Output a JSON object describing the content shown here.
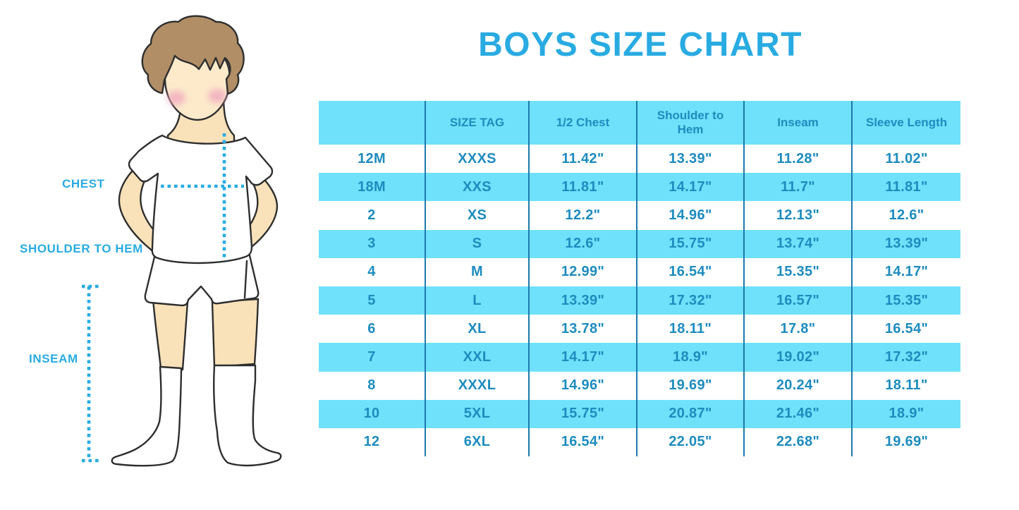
{
  "title": "BOYS SIZE CHART",
  "illustration": {
    "description": "cartoon boy in white t-shirt, shorts and knee socks with dotted measurement guides",
    "labels": {
      "chest": "CHEST",
      "shoulder_to_hem": "SHOULDER TO HEM",
      "inseam": "INSEAM"
    }
  },
  "chart_data": {
    "type": "table",
    "title": "BOYS SIZE CHART",
    "columns": [
      "",
      "SIZE TAG",
      "1/2 Chest",
      "Shoulder to Hem",
      "Inseam",
      "Sleeve Length"
    ],
    "rows": [
      [
        "12M",
        "XXXS",
        "11.42\"",
        "13.39\"",
        "11.28\"",
        "11.02\""
      ],
      [
        "18M",
        "XXS",
        "11.81\"",
        "14.17\"",
        "11.7\"",
        "11.81\""
      ],
      [
        "2",
        "XS",
        "12.2\"",
        "14.96\"",
        "12.13\"",
        "12.6\""
      ],
      [
        "3",
        "S",
        "12.6\"",
        "15.75\"",
        "13.74\"",
        "13.39\""
      ],
      [
        "4",
        "M",
        "12.99\"",
        "16.54\"",
        "15.35\"",
        "14.17\""
      ],
      [
        "5",
        "L",
        "13.39\"",
        "17.32\"",
        "16.57\"",
        "15.35\""
      ],
      [
        "6",
        "XL",
        "13.78\"",
        "18.11\"",
        "17.8\"",
        "16.54\""
      ],
      [
        "7",
        "XXL",
        "14.17\"",
        "18.9\"",
        "19.02\"",
        "17.32\""
      ],
      [
        "8",
        "XXXL",
        "14.96\"",
        "19.69\"",
        "20.24\"",
        "18.11\""
      ],
      [
        "10",
        "5XL",
        "15.75\"",
        "20.87\"",
        "21.46\"",
        "18.9\""
      ],
      [
        "12",
        "6XL",
        "16.54\"",
        "22.05\"",
        "22.68\"",
        "19.69\""
      ]
    ],
    "units": "inches",
    "layout_hints": "header row and alternating data rows filled light blue, others white; dark blue column dividers; no outer border"
  },
  "colors": {
    "accent_blue": "#29ABE2",
    "table_fill_blue": "#70E1FB",
    "table_text_blue": "#1D8CBE",
    "table_divider_blue": "#1C79AC",
    "skin": "#F9E2BA",
    "face_skin": "#FCEACB",
    "hair_brown": "#B18E66",
    "cheek_pink": "#F2A9C0",
    "outline_dark": "#2E2E2E"
  }
}
